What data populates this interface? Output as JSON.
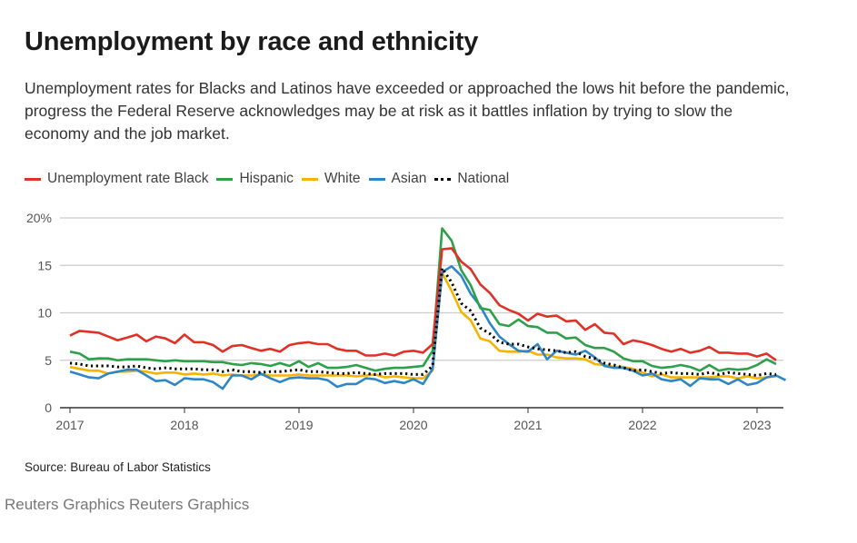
{
  "header": {
    "title": "Unemployment by race and ethnicity",
    "subtitle": "Unemployment rates for Blacks and Latinos have exceeded or approached the lows hit before the pandemic, progress the Federal Reserve acknowledges may be at risk as it battles inflation by trying to slow the economy and the job market."
  },
  "footer": {
    "source": "Source: Bureau of Labor Statistics",
    "credit": "Reuters Graphics Reuters Graphics"
  },
  "chart_data": {
    "type": "line",
    "title": "Unemployment by race and ethnicity",
    "xlabel": "",
    "ylabel": "",
    "x_start": "2017-01",
    "x_frequency": "monthly",
    "x_ticks": [
      "2017",
      "2018",
      "2019",
      "2020",
      "2021",
      "2022",
      "2023"
    ],
    "y_ticks": [
      "0",
      "5",
      "10",
      "15",
      "20%"
    ],
    "y_tick_values": [
      0,
      5,
      10,
      15,
      20
    ],
    "ylim": [
      0,
      20
    ],
    "grid": true,
    "legend_position": "top-left",
    "series": [
      {
        "name": "Unemployment rate Black",
        "color": "#e03127",
        "style": "solid",
        "values": [
          7.6,
          8.1,
          8.0,
          7.9,
          7.5,
          7.1,
          7.4,
          7.7,
          7.0,
          7.5,
          7.3,
          6.8,
          7.7,
          6.9,
          6.9,
          6.6,
          5.9,
          6.5,
          6.6,
          6.3,
          6.0,
          6.2,
          5.9,
          6.6,
          6.8,
          6.9,
          6.7,
          6.7,
          6.2,
          6.0,
          6.0,
          5.5,
          5.5,
          5.7,
          5.5,
          5.9,
          6.0,
          5.8,
          6.7,
          16.7,
          16.8,
          15.4,
          14.6,
          13.0,
          12.1,
          10.8,
          10.3,
          9.9,
          9.2,
          9.9,
          9.6,
          9.7,
          9.1,
          9.2,
          8.2,
          8.8,
          7.9,
          7.8,
          6.7,
          7.1,
          6.9,
          6.6,
          6.2,
          5.9,
          6.2,
          5.8,
          6.0,
          6.4,
          5.8,
          5.8,
          5.7,
          5.7,
          5.4,
          5.7,
          5.0
        ]
      },
      {
        "name": "Hispanic",
        "color": "#2ea04a",
        "style": "solid",
        "values": [
          5.9,
          5.7,
          5.1,
          5.2,
          5.2,
          5.0,
          5.1,
          5.1,
          5.1,
          5.0,
          4.9,
          5.0,
          4.9,
          4.9,
          4.9,
          4.8,
          4.8,
          4.6,
          4.5,
          4.7,
          4.6,
          4.4,
          4.7,
          4.4,
          4.9,
          4.3,
          4.7,
          4.2,
          4.2,
          4.3,
          4.5,
          4.2,
          3.9,
          4.1,
          4.2,
          4.2,
          4.3,
          4.4,
          6.0,
          18.9,
          17.6,
          14.5,
          12.9,
          10.5,
          10.3,
          8.8,
          8.6,
          9.3,
          8.6,
          8.5,
          7.9,
          7.9,
          7.3,
          7.4,
          6.6,
          6.3,
          6.3,
          5.9,
          5.2,
          4.9,
          4.9,
          4.4,
          4.2,
          4.3,
          4.5,
          4.3,
          3.9,
          4.5,
          3.9,
          4.1,
          4.0,
          4.1,
          4.5,
          5.1,
          4.6
        ]
      },
      {
        "name": "White",
        "color": "#f5b400",
        "style": "solid",
        "values": [
          4.3,
          4.1,
          3.9,
          3.9,
          3.6,
          3.8,
          3.8,
          3.9,
          3.8,
          3.6,
          3.7,
          3.7,
          3.5,
          3.6,
          3.5,
          3.6,
          3.4,
          3.5,
          3.4,
          3.4,
          3.5,
          3.4,
          3.4,
          3.4,
          3.5,
          3.4,
          3.4,
          3.4,
          3.4,
          3.4,
          3.3,
          3.4,
          3.5,
          3.2,
          3.3,
          3.2,
          3.1,
          3.1,
          3.9,
          14.2,
          12.3,
          10.1,
          9.2,
          7.3,
          7.0,
          6.0,
          5.9,
          5.9,
          6.0,
          5.6,
          5.6,
          5.3,
          5.2,
          5.2,
          5.1,
          4.6,
          4.5,
          4.3,
          4.3,
          4.1,
          3.7,
          3.3,
          3.5,
          3.2,
          3.2,
          3.2,
          3.2,
          3.2,
          3.3,
          3.3,
          3.1,
          3.3,
          3.1,
          3.2,
          3.3
        ]
      },
      {
        "name": "Asian",
        "color": "#2f86c7",
        "style": "solid",
        "values": [
          3.8,
          3.5,
          3.2,
          3.1,
          3.6,
          3.8,
          4.0,
          4.0,
          3.4,
          2.8,
          2.9,
          2.4,
          3.1,
          3.0,
          3.0,
          2.7,
          2.0,
          3.4,
          3.4,
          3.0,
          3.6,
          3.1,
          2.7,
          3.1,
          3.2,
          3.1,
          3.1,
          2.9,
          2.2,
          2.5,
          2.5,
          3.1,
          3.0,
          2.6,
          2.8,
          2.6,
          3.0,
          2.5,
          4.1,
          14.3,
          14.9,
          13.9,
          12.0,
          10.7,
          8.9,
          7.5,
          6.7,
          6.0,
          5.9,
          6.7,
          5.1,
          6.0,
          5.8,
          5.6,
          6.0,
          5.3,
          4.4,
          4.2,
          4.2,
          3.9,
          3.4,
          3.6,
          3.0,
          2.8,
          3.0,
          2.3,
          3.1,
          3.0,
          3.0,
          2.5,
          3.0,
          2.4,
          2.6,
          3.2,
          3.4,
          2.9
        ]
      },
      {
        "name": "National",
        "color": "#000000",
        "style": "dotted",
        "values": [
          4.7,
          4.6,
          4.4,
          4.4,
          4.4,
          4.3,
          4.3,
          4.4,
          4.2,
          4.1,
          4.2,
          4.1,
          4.1,
          4.1,
          4.0,
          4.0,
          3.8,
          4.0,
          3.8,
          3.8,
          3.7,
          3.8,
          3.8,
          3.9,
          4.0,
          3.8,
          3.8,
          3.7,
          3.6,
          3.6,
          3.7,
          3.6,
          3.5,
          3.6,
          3.6,
          3.6,
          3.5,
          3.5,
          4.4,
          14.7,
          13.2,
          11.0,
          10.2,
          8.4,
          7.8,
          6.9,
          6.7,
          6.7,
          6.4,
          6.2,
          6.1,
          6.0,
          5.8,
          5.9,
          5.4,
          5.2,
          4.7,
          4.5,
          4.2,
          3.9,
          4.0,
          3.8,
          3.6,
          3.7,
          3.6,
          3.6,
          3.5,
          3.7,
          3.5,
          3.7,
          3.6,
          3.5,
          3.4,
          3.6,
          3.5
        ]
      }
    ]
  }
}
